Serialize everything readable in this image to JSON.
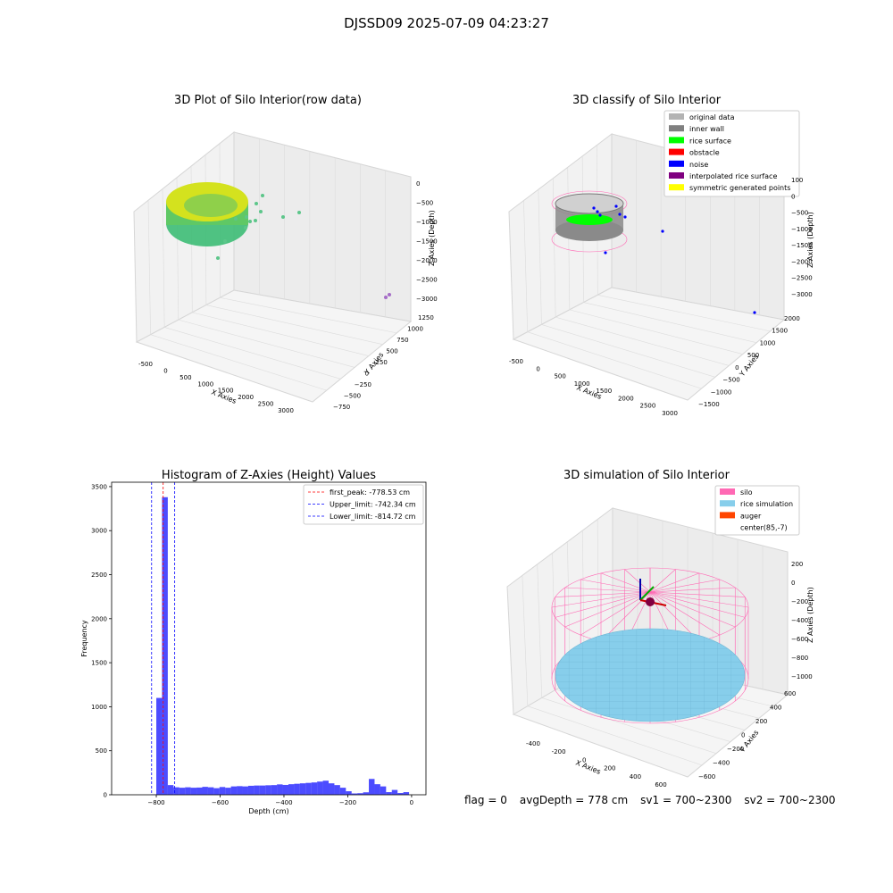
{
  "suptitle": "DJSSD09 2025-07-09 04:23:27",
  "colors": {
    "bar": "#0000ff",
    "first_peak_line": "#ff0000",
    "limit_lines": "#0000ff",
    "silo": "#ff69b4",
    "rice_simulation": "#87ceeb",
    "auger": "#ff4500",
    "inner_wall": "#808080",
    "rice_surface": "#00ff00",
    "noise": "#0000ff",
    "raw_low": "#3cb878",
    "raw_high": "#e5f51b"
  },
  "chart_data": [
    {
      "type": "scatter",
      "title": "3D Plot of Silo Interior(row data)",
      "xlabel": "X Axies",
      "ylabel": "Y Axies",
      "zlabel": "Z Axies (Depth)",
      "x_ticks": [
        "-500",
        "0",
        "500",
        "1000",
        "1500",
        "2000",
        "2500",
        "3000"
      ],
      "y_ticks": [
        "1250",
        "1000",
        "750",
        "500",
        "250",
        "0",
        "−250",
        "−500",
        "−750"
      ],
      "z_ticks": [
        "0",
        "−500",
        "−1000",
        "−1500",
        "−2000",
        "−2500",
        "−3000"
      ],
      "xlim": [
        -600,
        3100
      ],
      "ylim": [
        -750,
        1250
      ],
      "zlim": [
        -3100,
        100
      ],
      "grid": true
    },
    {
      "type": "scatter",
      "title": "3D classify of Silo Interior",
      "xlabel": "X Axies",
      "ylabel": "Y Axies",
      "zlabel": "Z Axies (Depth)",
      "x_ticks": [
        "-500",
        "0",
        "500",
        "1000",
        "1500",
        "2000",
        "2500",
        "3000"
      ],
      "y_ticks": [
        "2000",
        "1500",
        "1000",
        "500",
        "0",
        "−500",
        "−1000",
        "−1500"
      ],
      "z_ticks": [
        "100",
        "0",
        "−500",
        "−1000",
        "−1500",
        "−2000",
        "−2500",
        "−3000"
      ],
      "legend": [
        {
          "label": "original data",
          "color": "#b3b3b3"
        },
        {
          "label": "inner wall",
          "color": "#808080"
        },
        {
          "label": "rice surface",
          "color": "#00ff00"
        },
        {
          "label": "obstacle",
          "color": "#ff0000"
        },
        {
          "label": "noise",
          "color": "#0000ff"
        },
        {
          "label": "interpolated rice surface",
          "color": "#800080"
        },
        {
          "label": "symmetric generated points",
          "color": "#ffff00"
        }
      ],
      "legend_position": "top-right",
      "grid": true
    },
    {
      "type": "bar",
      "title": "Histogram of Z-Axies (Height) Values",
      "xlabel": "Depth (cm)",
      "ylabel": "Frequency",
      "xlim": [
        -940,
        45
      ],
      "ylim": [
        0,
        3550
      ],
      "x_ticks": [
        -800,
        -600,
        -400,
        -200,
        0
      ],
      "y_ticks": [
        0,
        500,
        1000,
        1500,
        2000,
        2500,
        3000,
        3500
      ],
      "bin_width": 18,
      "bins": [
        [
          -818,
          5
        ],
        [
          -800,
          1100
        ],
        [
          -782,
          3380
        ],
        [
          -764,
          110
        ],
        [
          -746,
          85
        ],
        [
          -728,
          80
        ],
        [
          -710,
          85
        ],
        [
          -692,
          80
        ],
        [
          -674,
          82
        ],
        [
          -656,
          90
        ],
        [
          -638,
          85
        ],
        [
          -620,
          75
        ],
        [
          -602,
          88
        ],
        [
          -584,
          80
        ],
        [
          -566,
          95
        ],
        [
          -548,
          98
        ],
        [
          -530,
          95
        ],
        [
          -512,
          102
        ],
        [
          -494,
          105
        ],
        [
          -476,
          105
        ],
        [
          -458,
          108
        ],
        [
          -440,
          110
        ],
        [
          -422,
          118
        ],
        [
          -404,
          112
        ],
        [
          -386,
          120
        ],
        [
          -368,
          125
        ],
        [
          -350,
          130
        ],
        [
          -332,
          135
        ],
        [
          -314,
          140
        ],
        [
          -296,
          150
        ],
        [
          -278,
          160
        ],
        [
          -260,
          130
        ],
        [
          -242,
          110
        ],
        [
          -224,
          80
        ],
        [
          -206,
          40
        ],
        [
          -188,
          15
        ],
        [
          -170,
          18
        ],
        [
          -152,
          28
        ],
        [
          -134,
          180
        ],
        [
          -116,
          120
        ],
        [
          -98,
          95
        ],
        [
          -80,
          30
        ],
        [
          -62,
          55
        ],
        [
          -44,
          20
        ],
        [
          -26,
          30
        ]
      ],
      "vlines": [
        {
          "label": "first_peak: -778.53 cm",
          "x": -778.53,
          "color": "#ff0000"
        },
        {
          "label": "Upper_limit: -742.34 cm",
          "x": -742.34,
          "color": "#0000ff"
        },
        {
          "label": "Lower_limit: -814.72 cm",
          "x": -814.72,
          "color": "#0000ff"
        }
      ],
      "legend_position": "top-right"
    },
    {
      "type": "other",
      "title": "3D simulation of Silo Interior",
      "xlabel": "X Axies",
      "ylabel": "Y Axies",
      "zlabel": "Z Axies (Depth)",
      "x_ticks": [
        "-400",
        "-200",
        "0",
        "200",
        "400",
        "600"
      ],
      "y_ticks": [
        "600",
        "400",
        "200",
        "0",
        "−200",
        "−400",
        "−600"
      ],
      "z_ticks": [
        "200",
        "0",
        "−200",
        "−400",
        "−600",
        "−800",
        "−1000"
      ],
      "legend": [
        {
          "label": "silo",
          "color": "#ff69b4"
        },
        {
          "label": "rice simulation",
          "color": "#87ceeb"
        },
        {
          "label": "auger",
          "color": "#ff4500"
        },
        {
          "label": "center(85,-7)",
          "color": ""
        }
      ],
      "legend_position": "top-right",
      "grid": true
    }
  ],
  "footer": {
    "flag": "flag = 0",
    "avg_depth": "avgDepth = 778 cm",
    "sv1": "sv1 = 700~2300",
    "sv2": "sv2 = 700~2300"
  }
}
